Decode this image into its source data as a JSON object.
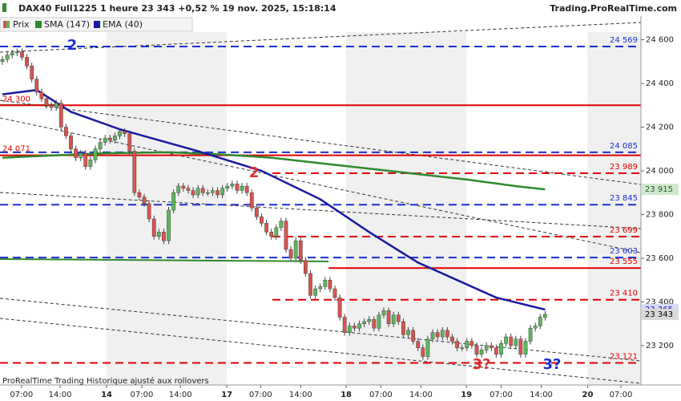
{
  "chart_data": {
    "type": "candlestick",
    "title": "DAX40 Full1225 1 heure 23 343 +0,52 % 19 nov. 2025, 15:18:14",
    "source": "Trading.ProRealTime.com",
    "footer": "ProRealTime Trading  Historique ajusté aux rollovers",
    "price_name": "Prix",
    "color_up": "#5cb85c",
    "color_down": "#d9534f",
    "last_label": "23 343",
    "open": [
      24500,
      24510,
      24530,
      24540,
      24545,
      24520,
      24480,
      24420,
      24360,
      24330,
      24300,
      24290,
      24310,
      24200,
      24160,
      24100,
      24060,
      24080,
      24020,
      24050,
      24100,
      24130,
      24150,
      24140,
      24160,
      24180,
      24170,
      24090,
      23900,
      23880,
      23850,
      23780,
      23700,
      23720,
      23680,
      23820,
      23900,
      23930,
      23920,
      23910,
      23890,
      23920,
      23900,
      23900,
      23910,
      23890,
      23920,
      23930,
      23940,
      23910,
      23930,
      23900,
      23830,
      23790,
      23760,
      23720,
      23700,
      23740,
      23770,
      23640,
      23600,
      23680,
      23590,
      23530,
      23430,
      23460,
      23470,
      23500,
      23460,
      23420,
      23330,
      23260,
      23290,
      23280,
      23300,
      23310,
      23320,
      23280,
      23340,
      23360,
      23300,
      23340,
      23310,
      23250,
      23270,
      23220,
      23190,
      23150,
      23230,
      23260,
      23240,
      23270,
      23240,
      23220,
      23190,
      23190,
      23220,
      23200,
      23160,
      23180,
      23200,
      23190,
      23160,
      23210,
      23240,
      23200,
      23230,
      23160,
      23220,
      23280,
      23290,
      23330
    ],
    "high": [
      24525,
      24545,
      24555,
      24560,
      24560,
      24535,
      24495,
      24435,
      24375,
      24345,
      24315,
      24325,
      24325,
      24215,
      24175,
      24115,
      24095,
      24095,
      24065,
      24115,
      24145,
      24165,
      24165,
      24175,
      24195,
      24195,
      24185,
      24105,
      23915,
      23895,
      23865,
      23795,
      23735,
      23735,
      23835,
      23915,
      23945,
      23945,
      23935,
      23925,
      23935,
      23935,
      23915,
      23925,
      23925,
      23935,
      23945,
      23955,
      23955,
      23945,
      23945,
      23915,
      23845,
      23805,
      23775,
      23735,
      23755,
      23785,
      23785,
      23655,
      23695,
      23695,
      23605,
      23545,
      23475,
      23485,
      23515,
      23515,
      23475,
      23435,
      23345,
      23305,
      23305,
      23315,
      23325,
      23335,
      23335,
      23355,
      23375,
      23375,
      23355,
      23355,
      23325,
      23285,
      23285,
      23235,
      23205,
      23245,
      23275,
      23275,
      23285,
      23285,
      23255,
      23235,
      23205,
      23235,
      23235,
      23215,
      23195,
      23215,
      23215,
      23205,
      23225,
      23255,
      23255,
      23245,
      23245,
      23235,
      23295,
      23305,
      23345,
      23358
    ],
    "low": [
      24485,
      24495,
      24515,
      24525,
      24505,
      24465,
      24405,
      24345,
      24315,
      24285,
      24275,
      24275,
      24185,
      24145,
      24085,
      24045,
      24045,
      24005,
      24005,
      24035,
      24085,
      24115,
      24125,
      24125,
      24145,
      24155,
      24075,
      23885,
      23865,
      23835,
      23765,
      23685,
      23685,
      23665,
      23665,
      23805,
      23885,
      23905,
      23895,
      23875,
      23875,
      23885,
      23885,
      23885,
      23875,
      23875,
      23905,
      23915,
      23895,
      23895,
      23885,
      23815,
      23775,
      23745,
      23705,
      23685,
      23685,
      23725,
      23625,
      23585,
      23585,
      23575,
      23515,
      23415,
      23415,
      23445,
      23455,
      23445,
      23405,
      23315,
      23245,
      23245,
      23265,
      23265,
      23285,
      23295,
      23265,
      23265,
      23325,
      23285,
      23285,
      23295,
      23235,
      23235,
      23205,
      23175,
      23135,
      23135,
      23215,
      23225,
      23225,
      23225,
      23205,
      23175,
      23175,
      23175,
      23185,
      23145,
      23145,
      23165,
      23175,
      23145,
      23145,
      23195,
      23185,
      23185,
      23145,
      23145,
      23205,
      23265,
      23275,
      23315
    ],
    "close": [
      24510,
      24530,
      24540,
      24545,
      24520,
      24480,
      24420,
      24360,
      24330,
      24300,
      24290,
      24310,
      24200,
      24160,
      24100,
      24060,
      24080,
      24020,
      24050,
      24100,
      24130,
      24150,
      24140,
      24160,
      24180,
      24170,
      24090,
      23900,
      23880,
      23850,
      23780,
      23700,
      23720,
      23680,
      23820,
      23900,
      23930,
      23920,
      23910,
      23890,
      23920,
      23900,
      23900,
      23910,
      23890,
      23920,
      23930,
      23940,
      23910,
      23930,
      23900,
      23830,
      23790,
      23760,
      23720,
      23700,
      23740,
      23770,
      23640,
      23600,
      23680,
      23590,
      23530,
      23430,
      23460,
      23470,
      23500,
      23460,
      23420,
      23330,
      23260,
      23290,
      23280,
      23300,
      23310,
      23320,
      23280,
      23340,
      23360,
      23300,
      23340,
      23310,
      23250,
      23270,
      23220,
      23190,
      23150,
      23230,
      23260,
      23240,
      23270,
      23240,
      23220,
      23190,
      23190,
      23220,
      23200,
      23160,
      23180,
      23200,
      23190,
      23160,
      23210,
      23240,
      23200,
      23230,
      23160,
      23220,
      23280,
      23290,
      23330,
      23343
    ],
    "indicators": [
      {
        "name": "SMA (147)",
        "color": "#2e8b2e",
        "last_label": "23 915",
        "x": [
          0,
          10,
          20,
          34,
          45,
          55,
          65,
          75,
          85,
          95,
          105,
          111
        ],
        "values": [
          24060,
          24070,
          24080,
          24085,
          24075,
          24060,
          24035,
          24010,
          23985,
          23960,
          23930,
          23915
        ]
      },
      {
        "name": "EMA (40)",
        "color": "#1a1aa0",
        "last_label": "23 365",
        "x": [
          0,
          7,
          14,
          24,
          40,
          53,
          65,
          75,
          85,
          95,
          101,
          111
        ],
        "values": [
          24350,
          24370,
          24270,
          24190,
          24090,
          24000,
          23870,
          23720,
          23580,
          23480,
          23420,
          23365
        ]
      }
    ],
    "levels": [
      {
        "value": 24569,
        "label": "24 569",
        "color": "#1a2fd0",
        "style": "dashed",
        "side": "right"
      },
      {
        "value": 24300,
        "label": "24 300",
        "color": "#e00000",
        "style": "solid",
        "side": "left"
      },
      {
        "value": 24085,
        "label": "24 085",
        "color": "#1a2fd0",
        "style": "dashed",
        "side": "right"
      },
      {
        "value": 24071,
        "label": "24 071",
        "color": "#e00000",
        "style": "solid",
        "side": "left"
      },
      {
        "value": 23989,
        "label": "23 989",
        "color": "#e00000",
        "style": "dashed",
        "side": "right"
      },
      {
        "value": 23845,
        "label": "23 845",
        "color": "#1a2fd0",
        "style": "dashed",
        "side": "right"
      },
      {
        "value": 23699,
        "label": "23 699",
        "color": "#e00000",
        "style": "dashed",
        "side": "right"
      },
      {
        "value": 23603,
        "label": "23 603",
        "color": "#1a2fd0",
        "style": "dashed",
        "side": "right"
      },
      {
        "value": 23555,
        "label": "23 555",
        "color": "#e00000",
        "style": "solid",
        "side": "right"
      },
      {
        "value": 23410,
        "label": "23 410",
        "color": "#e00000",
        "style": "dashed",
        "side": "right"
      },
      {
        "value": 23121,
        "label": "23 121",
        "color": "#e00000",
        "style": "dashed",
        "side": "right"
      }
    ],
    "annotations": [
      "2",
      "2",
      "3?",
      "3?"
    ],
    "xlim": [
      -0.5,
      130.6
    ],
    "ylim": [
      23020,
      24635
    ],
    "xticks": [
      {
        "value": 3.9,
        "label": "07:00"
      },
      {
        "value": 11.8,
        "label": "14:00"
      },
      {
        "value": 21.3,
        "label": "14"
      },
      {
        "value": 28.5,
        "label": "07:00"
      },
      {
        "value": 36.4,
        "label": "14:00"
      },
      {
        "value": 45.9,
        "label": "17"
      },
      {
        "value": 52.8,
        "label": "07:00"
      },
      {
        "value": 61,
        "label": "14:00"
      },
      {
        "value": 70.3,
        "label": "18"
      },
      {
        "value": 77.4,
        "label": "07:00"
      },
      {
        "value": 85.6,
        "label": "14:00"
      },
      {
        "value": 94.9,
        "label": "19"
      },
      {
        "value": 102,
        "label": "07:00"
      },
      {
        "value": 110.2,
        "label": "14:00"
      },
      {
        "value": 119.7,
        "label": "20"
      },
      {
        "value": 126.5,
        "label": "07:00"
      }
    ],
    "yticks": [
      {
        "value": 23200,
        "label": "23 200"
      },
      {
        "value": 23400,
        "label": "23 400"
      },
      {
        "value": 23600,
        "label": "23 600"
      },
      {
        "value": 23800,
        "label": "23 800"
      },
      {
        "value": 24000,
        "label": "24 000"
      },
      {
        "value": 24200,
        "label": "24 200"
      },
      {
        "value": 24400,
        "label": "24 400"
      },
      {
        "value": 24600,
        "label": "24 600"
      }
    ]
  }
}
